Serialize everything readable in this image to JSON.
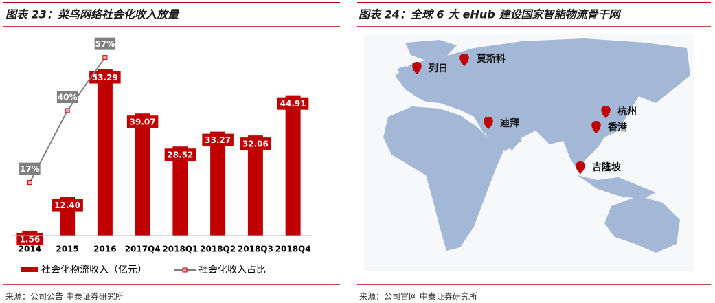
{
  "chart_data": {
    "type": "bar",
    "title": "图表 23：菜鸟网络社会化收入放量",
    "categories": [
      "2014",
      "2015",
      "2016",
      "2017Q4",
      "2018Q1",
      "2018Q2",
      "2018Q3",
      "2018Q4"
    ],
    "series": [
      {
        "name": "社会化物流收入（亿元）",
        "color": "#c00000",
        "values": [
          1.56,
          12.4,
          53.29,
          39.07,
          28.52,
          33.27,
          32.06,
          44.91
        ],
        "value_labels": [
          "1.56",
          "12.40",
          "53.29",
          "39.07",
          "28.52",
          "33.27",
          "32.06",
          "44.91"
        ]
      },
      {
        "name": "社会化收入占比",
        "color": "#7f7f7f",
        "type": "line",
        "axis": "y2",
        "values": [
          17,
          40,
          57,
          null,
          null,
          null,
          null,
          null
        ],
        "value_labels": [
          "17%",
          "40%",
          "57%",
          null,
          null,
          null,
          null,
          null
        ]
      }
    ],
    "ylim": [
      0,
      60
    ],
    "y2lim": [
      0,
      60
    ],
    "source": "来源：公司公告 中泰证券研究所"
  },
  "map": {
    "title": "图表 24：全球 6 大 eHub 建设国家智能物流骨干网",
    "cities": [
      "列日",
      "莫斯科",
      "迪拜",
      "杭州",
      "香港",
      "吉隆坡"
    ],
    "source": "来源：公司官网 中泰证券研究所"
  }
}
